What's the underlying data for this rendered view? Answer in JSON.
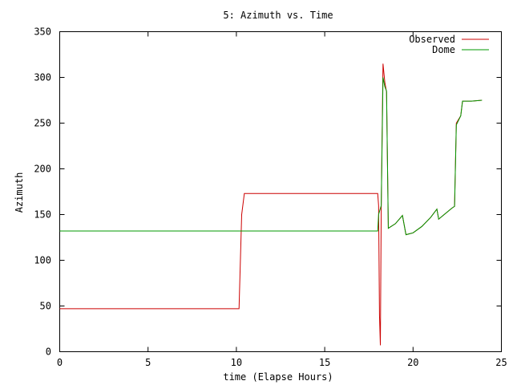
{
  "chart_data": {
    "type": "line",
    "title": "5: Azimuth vs. Time",
    "xlabel": "time (Elapse Hours)",
    "ylabel": "Azimuth",
    "xlim": [
      0,
      25
    ],
    "ylim": [
      0,
      350
    ],
    "xticks": [
      0,
      5,
      10,
      15,
      20,
      25
    ],
    "yticks": [
      0,
      50,
      100,
      150,
      200,
      250,
      300,
      350
    ],
    "grid": false,
    "legend_position": "top-right",
    "series": [
      {
        "name": "Observed",
        "color": "#cc0000",
        "points": [
          [
            0.0,
            47
          ],
          [
            10.15,
            47
          ],
          [
            10.3,
            150
          ],
          [
            10.45,
            173
          ],
          [
            18.0,
            173
          ],
          [
            18.05,
            160
          ],
          [
            18.1,
            40
          ],
          [
            18.15,
            7
          ],
          [
            18.2,
            160
          ],
          [
            18.3,
            315
          ],
          [
            18.4,
            295
          ],
          [
            18.5,
            284
          ],
          [
            18.55,
            210
          ],
          [
            18.6,
            135
          ],
          [
            19.0,
            140
          ],
          [
            19.4,
            149
          ],
          [
            19.6,
            128
          ],
          [
            20.0,
            130
          ],
          [
            20.5,
            137
          ],
          [
            21.0,
            147
          ],
          [
            21.35,
            156
          ],
          [
            21.45,
            145
          ],
          [
            21.7,
            149
          ],
          [
            22.2,
            157
          ],
          [
            22.35,
            159
          ],
          [
            22.45,
            250
          ],
          [
            22.7,
            258
          ],
          [
            22.8,
            274
          ],
          [
            23.3,
            274
          ],
          [
            23.9,
            275
          ]
        ]
      },
      {
        "name": "Dome",
        "color": "#009900",
        "points": [
          [
            0.0,
            132
          ],
          [
            18.0,
            132
          ],
          [
            18.05,
            150
          ],
          [
            18.2,
            160
          ],
          [
            18.3,
            300
          ],
          [
            18.4,
            290
          ],
          [
            18.5,
            285
          ],
          [
            18.55,
            210
          ],
          [
            18.6,
            135
          ],
          [
            19.0,
            140
          ],
          [
            19.4,
            149
          ],
          [
            19.6,
            128
          ],
          [
            20.0,
            130
          ],
          [
            20.5,
            137
          ],
          [
            21.0,
            147
          ],
          [
            21.35,
            156
          ],
          [
            21.45,
            145
          ],
          [
            21.7,
            149
          ],
          [
            22.2,
            157
          ],
          [
            22.35,
            159
          ],
          [
            22.45,
            248
          ],
          [
            22.7,
            258
          ],
          [
            22.8,
            274
          ],
          [
            23.3,
            274
          ],
          [
            23.9,
            275
          ]
        ]
      }
    ]
  }
}
